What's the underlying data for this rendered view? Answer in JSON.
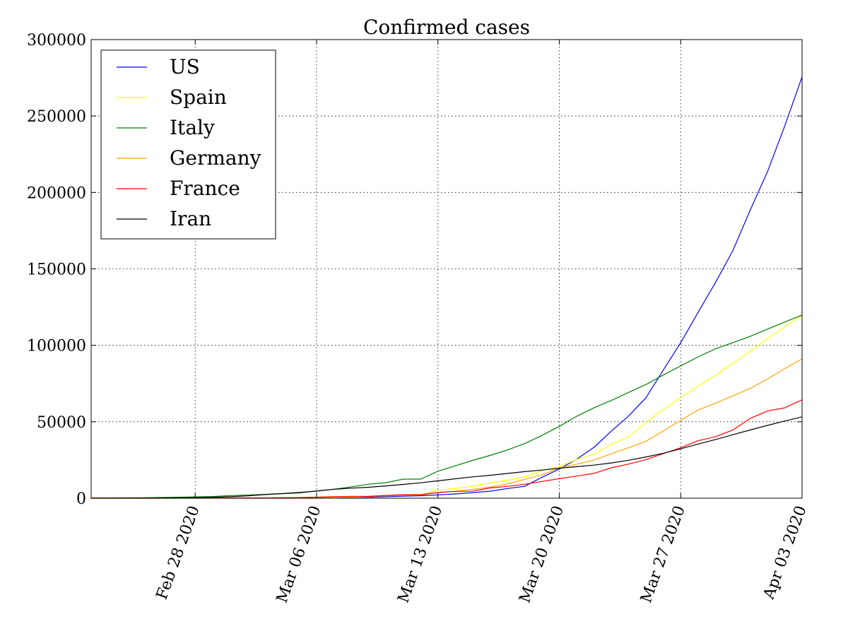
{
  "chart_data": {
    "type": "line",
    "title": "Confirmed cases",
    "xlabel": "",
    "ylabel": "",
    "xlim": [
      "2020-02-22",
      "2020-04-03"
    ],
    "ylim": [
      0,
      300000
    ],
    "x_ticks": [
      "Feb 28 2020",
      "Mar 06 2020",
      "Mar 13 2020",
      "Mar 20 2020",
      "Mar 27 2020",
      "Apr 03 2020"
    ],
    "y_ticks": [
      0,
      50000,
      100000,
      150000,
      200000,
      250000,
      300000
    ],
    "grid": true,
    "legend_position": "top-left",
    "x": [
      "2020-02-22",
      "2020-02-23",
      "2020-02-24",
      "2020-02-25",
      "2020-02-26",
      "2020-02-27",
      "2020-02-28",
      "2020-02-29",
      "2020-03-01",
      "2020-03-02",
      "2020-03-03",
      "2020-03-04",
      "2020-03-05",
      "2020-03-06",
      "2020-03-07",
      "2020-03-08",
      "2020-03-09",
      "2020-03-10",
      "2020-03-11",
      "2020-03-12",
      "2020-03-13",
      "2020-03-14",
      "2020-03-15",
      "2020-03-16",
      "2020-03-17",
      "2020-03-18",
      "2020-03-19",
      "2020-03-20",
      "2020-03-21",
      "2020-03-22",
      "2020-03-23",
      "2020-03-24",
      "2020-03-25",
      "2020-03-26",
      "2020-03-27",
      "2020-03-28",
      "2020-03-29",
      "2020-03-30",
      "2020-03-31",
      "2020-04-01",
      "2020-04-02",
      "2020-04-03"
    ],
    "series": [
      {
        "name": "US",
        "color": "#0000ff",
        "values": [
          35,
          35,
          53,
          53,
          59,
          60,
          62,
          70,
          76,
          101,
          122,
          153,
          221,
          319,
          435,
          541,
          704,
          994,
          1301,
          1630,
          2183,
          2770,
          3613,
          4596,
          6344,
          7783,
          13677,
          19100,
          25489,
          33276,
          43847,
          53740,
          65778,
          83836,
          101657,
          121478,
          140886,
          161807,
          188172,
          213372,
          243453,
          275586
        ]
      },
      {
        "name": "Spain",
        "color": "#ffff00",
        "values": [
          2,
          2,
          2,
          6,
          13,
          15,
          32,
          45,
          84,
          120,
          165,
          222,
          259,
          400,
          500,
          673,
          1073,
          1695,
          2277,
          2277,
          5232,
          6391,
          7798,
          9942,
          11748,
          13910,
          17963,
          20410,
          25374,
          28768,
          35136,
          39885,
          49515,
          57786,
          65719,
          73235,
          80110,
          87956,
          95923,
          104118,
          112065,
          119199
        ]
      },
      {
        "name": "Italy",
        "color": "#008000",
        "values": [
          62,
          155,
          229,
          322,
          453,
          655,
          888,
          1128,
          1694,
          2036,
          2502,
          3089,
          3858,
          4636,
          5883,
          7375,
          9172,
          10149,
          12462,
          12462,
          17660,
          21157,
          24747,
          27980,
          31506,
          35713,
          41035,
          47021,
          53578,
          59138,
          63927,
          69176,
          74386,
          80589,
          86498,
          92472,
          97689,
          101739,
          105792,
          110574,
          115242,
          119827
        ]
      },
      {
        "name": "Germany",
        "color": "#ffa500",
        "values": [
          16,
          16,
          16,
          17,
          27,
          46,
          48,
          79,
          130,
          159,
          196,
          262,
          482,
          670,
          799,
          1040,
          1176,
          1457,
          1908,
          2078,
          3675,
          4585,
          5795,
          7272,
          9257,
          12327,
          15320,
          19848,
          22213,
          24873,
          29056,
          32986,
          37323,
          43938,
          50871,
          57695,
          62095,
          66885,
          71808,
          77872,
          84794,
          91159
        ]
      },
      {
        "name": "France",
        "color": "#ff0000",
        "values": [
          12,
          12,
          12,
          14,
          18,
          38,
          57,
          100,
          130,
          191,
          204,
          288,
          380,
          656,
          959,
          1136,
          1219,
          1794,
          2293,
          2293,
          3681,
          4496,
          4532,
          6683,
          7715,
          9124,
          10970,
          12758,
          14463,
          16243,
          19856,
          22304,
          25233,
          29155,
          32964,
          37575,
          40174,
          44550,
          52128,
          56989,
          59105,
          64338
        ]
      },
      {
        "name": "Iran",
        "color": "#000000",
        "values": [
          28,
          43,
          61,
          95,
          139,
          245,
          388,
          593,
          978,
          1501,
          2336,
          2922,
          3513,
          4747,
          5823,
          6566,
          7161,
          8042,
          9000,
          10075,
          11364,
          12729,
          13938,
          14991,
          16169,
          17361,
          18407,
          19644,
          20610,
          21638,
          23049,
          24811,
          27017,
          29406,
          32332,
          35408,
          38309,
          41495,
          44605,
          47593,
          50468,
          53183
        ]
      }
    ]
  }
}
